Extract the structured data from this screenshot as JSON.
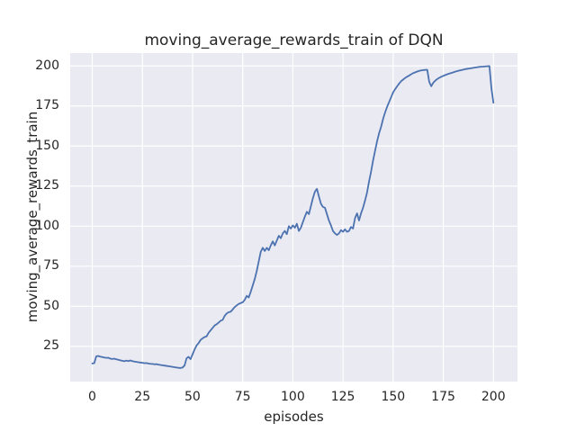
{
  "chart_data": {
    "type": "line",
    "title": "moving_average_rewards_train of DQN",
    "xlabel": "episodes",
    "ylabel": "moving_average_rewards_train",
    "xlim": [
      -11,
      212
    ],
    "ylim": [
      3,
      208
    ],
    "xticks": [
      0,
      25,
      50,
      75,
      100,
      125,
      150,
      175,
      200
    ],
    "yticks": [
      25,
      50,
      75,
      100,
      125,
      150,
      175,
      200
    ],
    "grid": true,
    "legend": null,
    "colors": {
      "line": "#4c72b0",
      "plot_background": "#eaeaf2",
      "gridline": "#ffffff",
      "text": "#262626",
      "figure_background": "#ffffff"
    },
    "series": [
      {
        "name": "moving_average_rewards_train",
        "x": [
          0,
          1,
          2,
          3,
          4,
          5,
          6,
          7,
          8,
          9,
          10,
          11,
          12,
          13,
          14,
          15,
          16,
          17,
          18,
          19,
          20,
          21,
          22,
          23,
          24,
          25,
          26,
          27,
          28,
          29,
          30,
          31,
          32,
          33,
          34,
          35,
          36,
          37,
          38,
          39,
          40,
          41,
          42,
          43,
          44,
          45,
          46,
          47,
          48,
          49,
          50,
          51,
          52,
          53,
          54,
          55,
          56,
          57,
          58,
          59,
          60,
          61,
          62,
          63,
          64,
          65,
          66,
          67,
          68,
          69,
          70,
          71,
          72,
          73,
          74,
          75,
          76,
          77,
          78,
          79,
          80,
          81,
          82,
          83,
          84,
          85,
          86,
          87,
          88,
          89,
          90,
          91,
          92,
          93,
          94,
          95,
          96,
          97,
          98,
          99,
          100,
          101,
          102,
          103,
          104,
          105,
          106,
          107,
          108,
          109,
          110,
          111,
          112,
          113,
          114,
          115,
          116,
          117,
          118,
          119,
          120,
          121,
          122,
          123,
          124,
          125,
          126,
          127,
          128,
          129,
          130,
          131,
          132,
          133,
          134,
          135,
          136,
          137,
          138,
          139,
          140,
          141,
          142,
          143,
          144,
          145,
          146,
          147,
          148,
          149,
          150,
          151,
          152,
          153,
          154,
          155,
          156,
          157,
          158,
          159,
          160,
          161,
          162,
          163,
          164,
          165,
          166,
          167,
          168,
          169,
          170,
          171,
          172,
          173,
          174,
          175,
          176,
          177,
          178,
          179,
          180,
          181,
          182,
          183,
          184,
          185,
          186,
          187,
          188,
          189,
          190,
          191,
          192,
          193,
          194,
          195,
          196,
          197,
          198,
          199,
          200
        ],
        "y": [
          14.3,
          14.5,
          18.8,
          19,
          18.6,
          18.3,
          18,
          17.8,
          17.9,
          17.3,
          17.1,
          17.3,
          16.9,
          16.6,
          16.3,
          16,
          15.7,
          16.1,
          15.8,
          16.2,
          15.8,
          15.5,
          15.3,
          15.1,
          14.9,
          14.7,
          14.5,
          14.6,
          14.3,
          14.1,
          14,
          13.8,
          13.9,
          13.6,
          13.4,
          13.2,
          13,
          12.8,
          12.6,
          12.4,
          12.2,
          12,
          11.8,
          11.6,
          11.5,
          11.8,
          13,
          17.5,
          18.5,
          17,
          20,
          23,
          25.5,
          27,
          29,
          30,
          30.8,
          31.2,
          33.5,
          35,
          36.5,
          38,
          38.8,
          39.8,
          41,
          41.5,
          44,
          45.5,
          46.3,
          46.6,
          48,
          49.5,
          50.5,
          51.5,
          52,
          52.5,
          54,
          56.5,
          55.5,
          59,
          63,
          67,
          72,
          78,
          84,
          86.5,
          84.5,
          86.5,
          85,
          88,
          90.5,
          88,
          91,
          94,
          92.5,
          95.5,
          97,
          95,
          100,
          98.5,
          100.5,
          99,
          101.5,
          97,
          99,
          102.5,
          106,
          109,
          107.5,
          112.5,
          117.5,
          121.5,
          123.3,
          118.5,
          114,
          112,
          111.5,
          107.5,
          103.5,
          100.5,
          97,
          95.5,
          94.5,
          95.5,
          97.5,
          96.5,
          98,
          96.5,
          97,
          99.5,
          98.5,
          105,
          108,
          103.5,
          108,
          111.5,
          116,
          121,
          128,
          134,
          141,
          147,
          153,
          158,
          162,
          167,
          171,
          174.5,
          177.5,
          180.5,
          183.5,
          185.5,
          187.3,
          189,
          190.5,
          191.5,
          192.5,
          193.3,
          194,
          194.8,
          195.5,
          196,
          196.5,
          196.9,
          197.2,
          197.4,
          197.5,
          197.6,
          190,
          187.3,
          189.5,
          190.8,
          191.8,
          192.6,
          193.2,
          193.8,
          194.3,
          194.8,
          195.2,
          195.6,
          196,
          196.4,
          196.8,
          197.1,
          197.4,
          197.7,
          198,
          198.2,
          198.4,
          198.6,
          198.8,
          199,
          199.2,
          199.4,
          199.5,
          199.6,
          199.7,
          199.8,
          199.9,
          186,
          177
        ]
      }
    ]
  }
}
